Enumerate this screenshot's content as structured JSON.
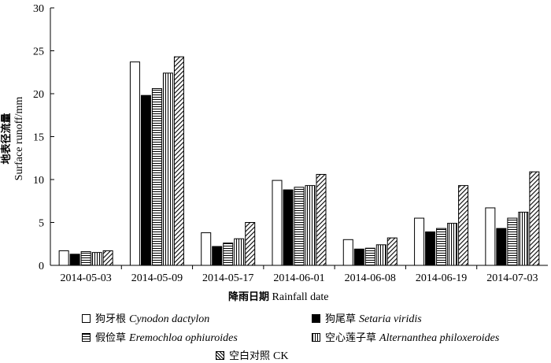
{
  "chart_data": {
    "type": "bar",
    "categories": [
      "2014-05-03",
      "2014-05-09",
      "2014-05-17",
      "2014-06-01",
      "2014-06-08",
      "2014-06-19",
      "2014-07-03"
    ],
    "series": [
      {
        "name": "狗牙根 Cynodon dactylon",
        "name_cn": "狗牙根",
        "name_latin": "Cynodon dactylon",
        "pattern": "white",
        "values": [
          1.7,
          23.7,
          3.8,
          9.9,
          3.0,
          5.5,
          6.7
        ]
      },
      {
        "name": "狗尾草 Setaria viridis",
        "name_cn": "狗尾草",
        "name_latin": "Setaria viridis",
        "pattern": "black",
        "values": [
          1.3,
          19.8,
          2.2,
          8.8,
          1.9,
          3.9,
          4.3
        ]
      },
      {
        "name": "假俭草 Eremochloa ophiuroides",
        "name_cn": "假俭草",
        "name_latin": "Eremochloa ophiuroides",
        "pattern": "horizontal",
        "values": [
          1.6,
          20.6,
          2.6,
          9.1,
          2.0,
          4.3,
          5.5
        ]
      },
      {
        "name": "空心莲子草 Alternanthea philoxeroides",
        "name_cn": "空心莲子草",
        "name_latin": "Alternanthea philoxeroides",
        "pattern": "vertical",
        "values": [
          1.5,
          22.4,
          3.1,
          9.3,
          2.4,
          4.9,
          6.2
        ]
      },
      {
        "name": "空白对照 CK",
        "name_cn": "空白对照",
        "name_latin": "CK",
        "pattern": "diagonal",
        "values": [
          1.7,
          24.3,
          5.0,
          10.6,
          3.2,
          9.3,
          10.9
        ]
      }
    ],
    "ylabel_cn": "地表径流量",
    "ylabel_en": "Surface runoff/mm",
    "xlabel_cn": "降雨日期",
    "xlabel_en": "Rainfall date",
    "ylim": [
      0,
      30
    ],
    "yticks": [
      0,
      5,
      10,
      15,
      20,
      25,
      30
    ],
    "grid": false,
    "legend_position": "bottom"
  }
}
